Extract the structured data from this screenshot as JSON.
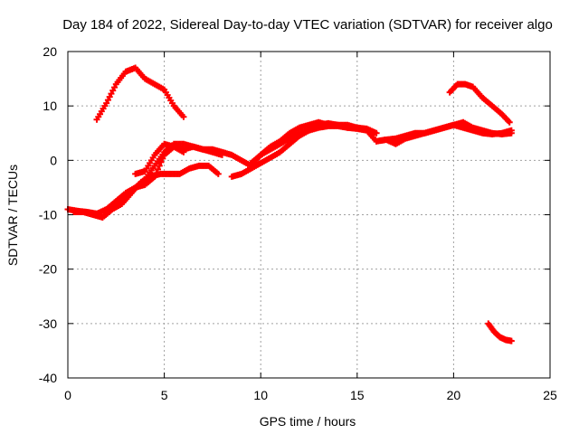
{
  "chart_data": {
    "type": "scatter",
    "title": "Day 184 of 2022, Sidereal Day-to-day VTEC variation (SDTVAR) for receiver algo",
    "xlabel": "GPS time / hours",
    "ylabel": "SDTVAR / TECUs",
    "xlim": [
      0,
      25
    ],
    "ylim": [
      -40,
      20
    ],
    "xticks": [
      0,
      5,
      10,
      15,
      20,
      25
    ],
    "yticks": [
      -40,
      -30,
      -20,
      -10,
      0,
      10,
      20
    ],
    "grid": true,
    "marker_color": "#ff0000",
    "series": [
      {
        "name": "arc-1",
        "x": [
          0.0,
          0.5,
          1.0,
          1.5,
          2.0,
          2.5,
          3.0,
          3.5,
          4.0,
          4.5,
          5.0,
          5.5,
          6.0,
          6.5,
          7.0,
          7.5,
          8.0,
          8.5,
          9.0,
          9.5,
          10.0,
          10.5,
          11.0,
          11.5,
          12.0,
          12.5,
          13.0,
          13.5,
          14.0,
          14.5,
          15.0
        ],
        "y": [
          -9,
          -9.3,
          -9.5,
          -9.8,
          -9,
          -8,
          -6.5,
          -5,
          -3.5,
          -1,
          1.5,
          3,
          3,
          2.5,
          2,
          2,
          1.5,
          1,
          0,
          -1,
          1,
          2.5,
          3.5,
          5,
          6,
          6.5,
          7,
          6.5,
          6.5,
          6,
          6
        ]
      },
      {
        "name": "arc-2",
        "x": [
          0.3,
          0.8,
          1.3,
          1.8,
          2.3,
          2.8,
          3.3,
          3.8,
          4.3,
          4.8,
          5.3,
          5.8,
          6.3,
          6.8,
          7.3,
          7.8
        ],
        "y": [
          -9.5,
          -9.5,
          -10,
          -10.5,
          -9,
          -8,
          -6,
          -4,
          -3,
          -2.5,
          -2.5,
          -2.5,
          -1.5,
          -1,
          -1,
          -2.5
        ]
      },
      {
        "name": "arc-3",
        "x": [
          1.5,
          2.0,
          2.5,
          3.0,
          3.5,
          4.0,
          4.5,
          5.0,
          5.5,
          6.0
        ],
        "y": [
          7.5,
          10.5,
          14,
          16.3,
          17,
          15,
          14,
          13,
          10,
          8
        ]
      },
      {
        "name": "arc-4",
        "x": [
          2.0,
          2.5,
          3.0,
          3.5,
          4.0,
          4.5,
          5.0,
          5.5,
          6.0,
          6.5,
          7.0,
          7.5,
          8.0
        ],
        "y": [
          -9,
          -7.5,
          -6,
          -5,
          -4.5,
          -3,
          1,
          2.5,
          2,
          2.5,
          2,
          1.5,
          1
        ]
      },
      {
        "name": "arc-5",
        "x": [
          3.5,
          4.0,
          4.5,
          5.0,
          5.5,
          6.0
        ],
        "y": [
          -2.5,
          -2,
          1,
          3,
          2.5,
          1.5
        ]
      },
      {
        "name": "arc-6",
        "x": [
          8.5,
          9.0,
          9.5,
          10.0,
          10.5,
          11.0,
          11.5,
          12.0,
          12.5,
          13.0,
          13.5,
          14.0,
          14.5,
          15.0,
          15.5,
          16.0,
          16.5,
          17.0,
          17.5,
          18.0,
          18.5,
          19.0,
          19.5,
          20.0,
          20.5,
          21.0,
          21.5,
          22.0,
          22.5,
          23.0
        ],
        "y": [
          -3,
          -2.5,
          -1.5,
          -0.5,
          0.5,
          1.5,
          3,
          4.5,
          5.5,
          6,
          6.3,
          6.3,
          6,
          5.8,
          5.5,
          3.5,
          3.8,
          3,
          4,
          4.5,
          5,
          5.5,
          6,
          6.5,
          6,
          5.5,
          5,
          4.8,
          5,
          5.5
        ]
      },
      {
        "name": "arc-7",
        "x": [
          9.5,
          10.0,
          10.5,
          11.0,
          11.5,
          12.0,
          12.5,
          13.0,
          13.5,
          14.0,
          14.5,
          15.0,
          15.5,
          16.0
        ],
        "y": [
          -0.5,
          1,
          2,
          3,
          4,
          5,
          5.5,
          6.5,
          6.8,
          6.5,
          6.5,
          6,
          5.8,
          5
        ]
      },
      {
        "name": "arc-8",
        "x": [
          16.0,
          16.5,
          17.0,
          17.5,
          18.0,
          18.5,
          19.0,
          19.5,
          20.0,
          20.5,
          21.0,
          21.5,
          22.0,
          22.5,
          23.0
        ],
        "y": [
          3.5,
          3.8,
          4,
          4.5,
          5,
          5,
          5.5,
          6,
          6.5,
          7,
          6,
          5.5,
          5,
          4.8,
          5
        ]
      },
      {
        "name": "arc-9",
        "x": [
          19.8,
          20.2,
          20.6,
          21.0,
          21.5,
          22.0,
          22.5,
          22.9
        ],
        "y": [
          12.5,
          14,
          14,
          13.5,
          11.5,
          10,
          8.5,
          7
        ]
      },
      {
        "name": "arc-10",
        "x": [
          21.8,
          22.1,
          22.4,
          22.7,
          23.0
        ],
        "y": [
          -30,
          -31.5,
          -32.5,
          -33,
          -33.2
        ]
      }
    ]
  }
}
